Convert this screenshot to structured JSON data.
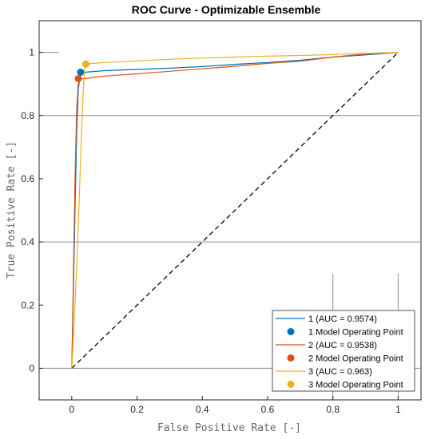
{
  "chart_data": {
    "type": "line",
    "title": "ROC Curve - Optimizable Ensemble",
    "xlabel": "False Positive Rate [-]",
    "ylabel": "True Positive Rate [-]",
    "xlim": [
      -0.1,
      1.07
    ],
    "ylim": [
      -0.1,
      1.1
    ],
    "xticks": [
      0,
      0.2,
      0.4,
      0.6,
      0.8,
      1
    ],
    "xtick_labels": [
      "0",
      "0.2",
      "0.4",
      "0.6",
      "0.8",
      "1"
    ],
    "yticks": [
      0,
      0.2,
      0.4,
      0.6,
      0.8,
      1
    ],
    "ytick_labels": [
      "0",
      "0.2",
      "0.4",
      "0.6",
      "0.8",
      "1"
    ],
    "grid": "partial",
    "legend_position": "bottom-right",
    "diagonal": {
      "x": [
        0,
        1
      ],
      "y": [
        0,
        1
      ],
      "style": "dashed",
      "color": "#000000"
    },
    "series": [
      {
        "name": "1 (AUC = 0.9574)",
        "color": "#0072BD",
        "x": [
          0,
          0.005,
          0.01,
          0.015,
          0.02,
          0.025,
          0.03,
          0.05,
          0.1,
          0.2,
          0.3,
          0.4,
          0.5,
          0.6,
          0.7,
          0.8,
          0.9,
          1.0
        ],
        "y": [
          0,
          0.25,
          0.5,
          0.75,
          0.88,
          0.925,
          0.935,
          0.938,
          0.942,
          0.946,
          0.95,
          0.955,
          0.962,
          0.968,
          0.975,
          0.985,
          0.992,
          1.0
        ]
      },
      {
        "name": "2 (AUC = 0.9538)",
        "color": "#D95319",
        "x": [
          0,
          0.005,
          0.01,
          0.015,
          0.02,
          0.025,
          0.05,
          0.1,
          0.2,
          0.3,
          0.4,
          0.5,
          0.6,
          0.7,
          0.8,
          0.9,
          1.0
        ],
        "y": [
          0,
          0.3,
          0.6,
          0.82,
          0.9,
          0.915,
          0.918,
          0.925,
          0.932,
          0.94,
          0.948,
          0.956,
          0.965,
          0.972,
          0.985,
          0.995,
          1.0
        ]
      },
      {
        "name": "3 (AUC = 0.963)",
        "color": "#EDB120",
        "x": [
          0,
          0.01,
          0.02,
          0.03,
          0.035,
          0.04,
          0.045,
          0.1,
          0.2,
          0.3,
          0.4,
          0.5,
          0.6,
          0.7,
          0.8,
          0.9,
          1.0
        ],
        "y": [
          0,
          0.2,
          0.45,
          0.75,
          0.88,
          0.95,
          0.963,
          0.968,
          0.973,
          0.978,
          0.982,
          0.985,
          0.988,
          0.99,
          0.993,
          0.997,
          1.0
        ]
      }
    ],
    "operating_points": [
      {
        "name": "1 Model Operating Point",
        "x": 0.027,
        "y": 0.937,
        "color": "#0072BD"
      },
      {
        "name": "2 Model Operating Point",
        "x": 0.02,
        "y": 0.917,
        "color": "#D95319"
      },
      {
        "name": "3 Model Operating Point",
        "x": 0.043,
        "y": 0.963,
        "color": "#EDB120"
      }
    ],
    "legend": [
      {
        "label": "1 (AUC = 0.9574)",
        "kind": "line",
        "color": "#0072BD"
      },
      {
        "label": "1 Model Operating Point",
        "kind": "marker",
        "color": "#0072BD"
      },
      {
        "label": "2 (AUC = 0.9538)",
        "kind": "line",
        "color": "#D95319"
      },
      {
        "label": "2 Model Operating Point",
        "kind": "marker",
        "color": "#D95319"
      },
      {
        "label": "3 (AUC = 0.963)",
        "kind": "line",
        "color": "#EDB120"
      },
      {
        "label": "3 Model Operating Point",
        "kind": "marker",
        "color": "#EDB120"
      }
    ]
  }
}
